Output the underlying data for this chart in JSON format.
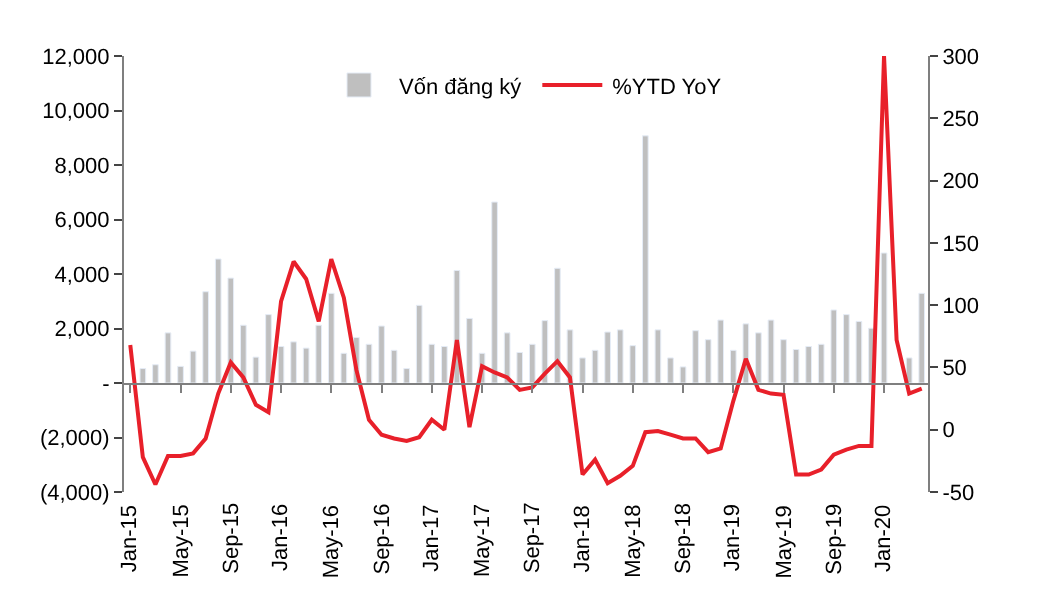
{
  "chart_data": {
    "type": "bar",
    "categories": [
      "Jan-15",
      null,
      null,
      null,
      "May-15",
      null,
      null,
      null,
      "Sep-15",
      null,
      null,
      null,
      "Jan-16",
      null,
      null,
      null,
      "May-16",
      null,
      null,
      null,
      "Sep-16",
      null,
      null,
      null,
      "Jan-17",
      null,
      null,
      null,
      "May-17",
      null,
      null,
      null,
      "Sep-17",
      null,
      null,
      null,
      "Jan-18",
      null,
      null,
      null,
      "May-18",
      null,
      null,
      null,
      "Sep-18",
      null,
      null,
      null,
      "Jan-19",
      null,
      null,
      null,
      "May-19",
      null,
      null,
      null,
      "Sep-19",
      null,
      null,
      null,
      "Jan-20",
      null,
      null,
      null
    ],
    "series": [
      {
        "name": "Vốn đăng ký",
        "color": "#bfbfbf",
        "values": [
          null,
          530,
          670,
          1840,
          610,
          1170,
          3350,
          4550,
          3850,
          2120,
          950,
          2510,
          1340,
          1510,
          1280,
          2120,
          3290,
          1090,
          1670,
          1420,
          2090,
          1200,
          530,
          2850,
          1420,
          1340,
          4130,
          2370,
          1090,
          6640,
          1840,
          1120,
          1420,
          2290,
          4210,
          1950,
          920,
          1200,
          1870,
          1950,
          1370,
          9070,
          1950,
          920,
          590,
          1920,
          1590,
          2310,
          1200,
          2170,
          1840,
          2310,
          1590,
          1230,
          1340,
          1420,
          2680,
          2510,
          2260,
          2010,
          4770,
          null,
          920,
          3290
        ]
      },
      {
        "name": "%YTD YoY",
        "type": "line",
        "axis": "y2",
        "color": "#e8202a",
        "values": [
          68,
          -22,
          -44,
          -21,
          -21,
          -19,
          -7,
          29,
          54,
          42,
          20,
          14,
          103,
          135,
          121,
          87,
          137,
          106,
          48,
          8,
          -4,
          -7,
          -9,
          -6,
          8,
          0,
          72,
          2,
          51,
          46,
          42,
          32,
          34,
          45,
          55,
          42,
          -36,
          -24,
          -43,
          -37,
          -29,
          -2,
          -1,
          -4,
          -7,
          -7,
          -18,
          -15,
          23,
          57,
          32,
          29,
          28,
          -36,
          -36,
          -32,
          -20,
          -16,
          -13,
          -13,
          300,
          72,
          29,
          33
        ]
      }
    ],
    "ylim": [
      -4000,
      12000
    ],
    "yticks": [
      {
        "value": -4000,
        "label": "(4,000)"
      },
      {
        "value": -2000,
        "label": "(2,000)"
      },
      {
        "value": 0,
        "label": "-"
      },
      {
        "value": 2000,
        "label": "2,000"
      },
      {
        "value": 4000,
        "label": "4,000"
      },
      {
        "value": 6000,
        "label": "6,000"
      },
      {
        "value": 8000,
        "label": "8,000"
      },
      {
        "value": 10000,
        "label": "10,000"
      },
      {
        "value": 12000,
        "label": "12,000"
      }
    ],
    "y2lim": [
      -50,
      300
    ],
    "y2ticks": [
      -50,
      0,
      50,
      100,
      150,
      200,
      250,
      300
    ],
    "legend": "top"
  }
}
